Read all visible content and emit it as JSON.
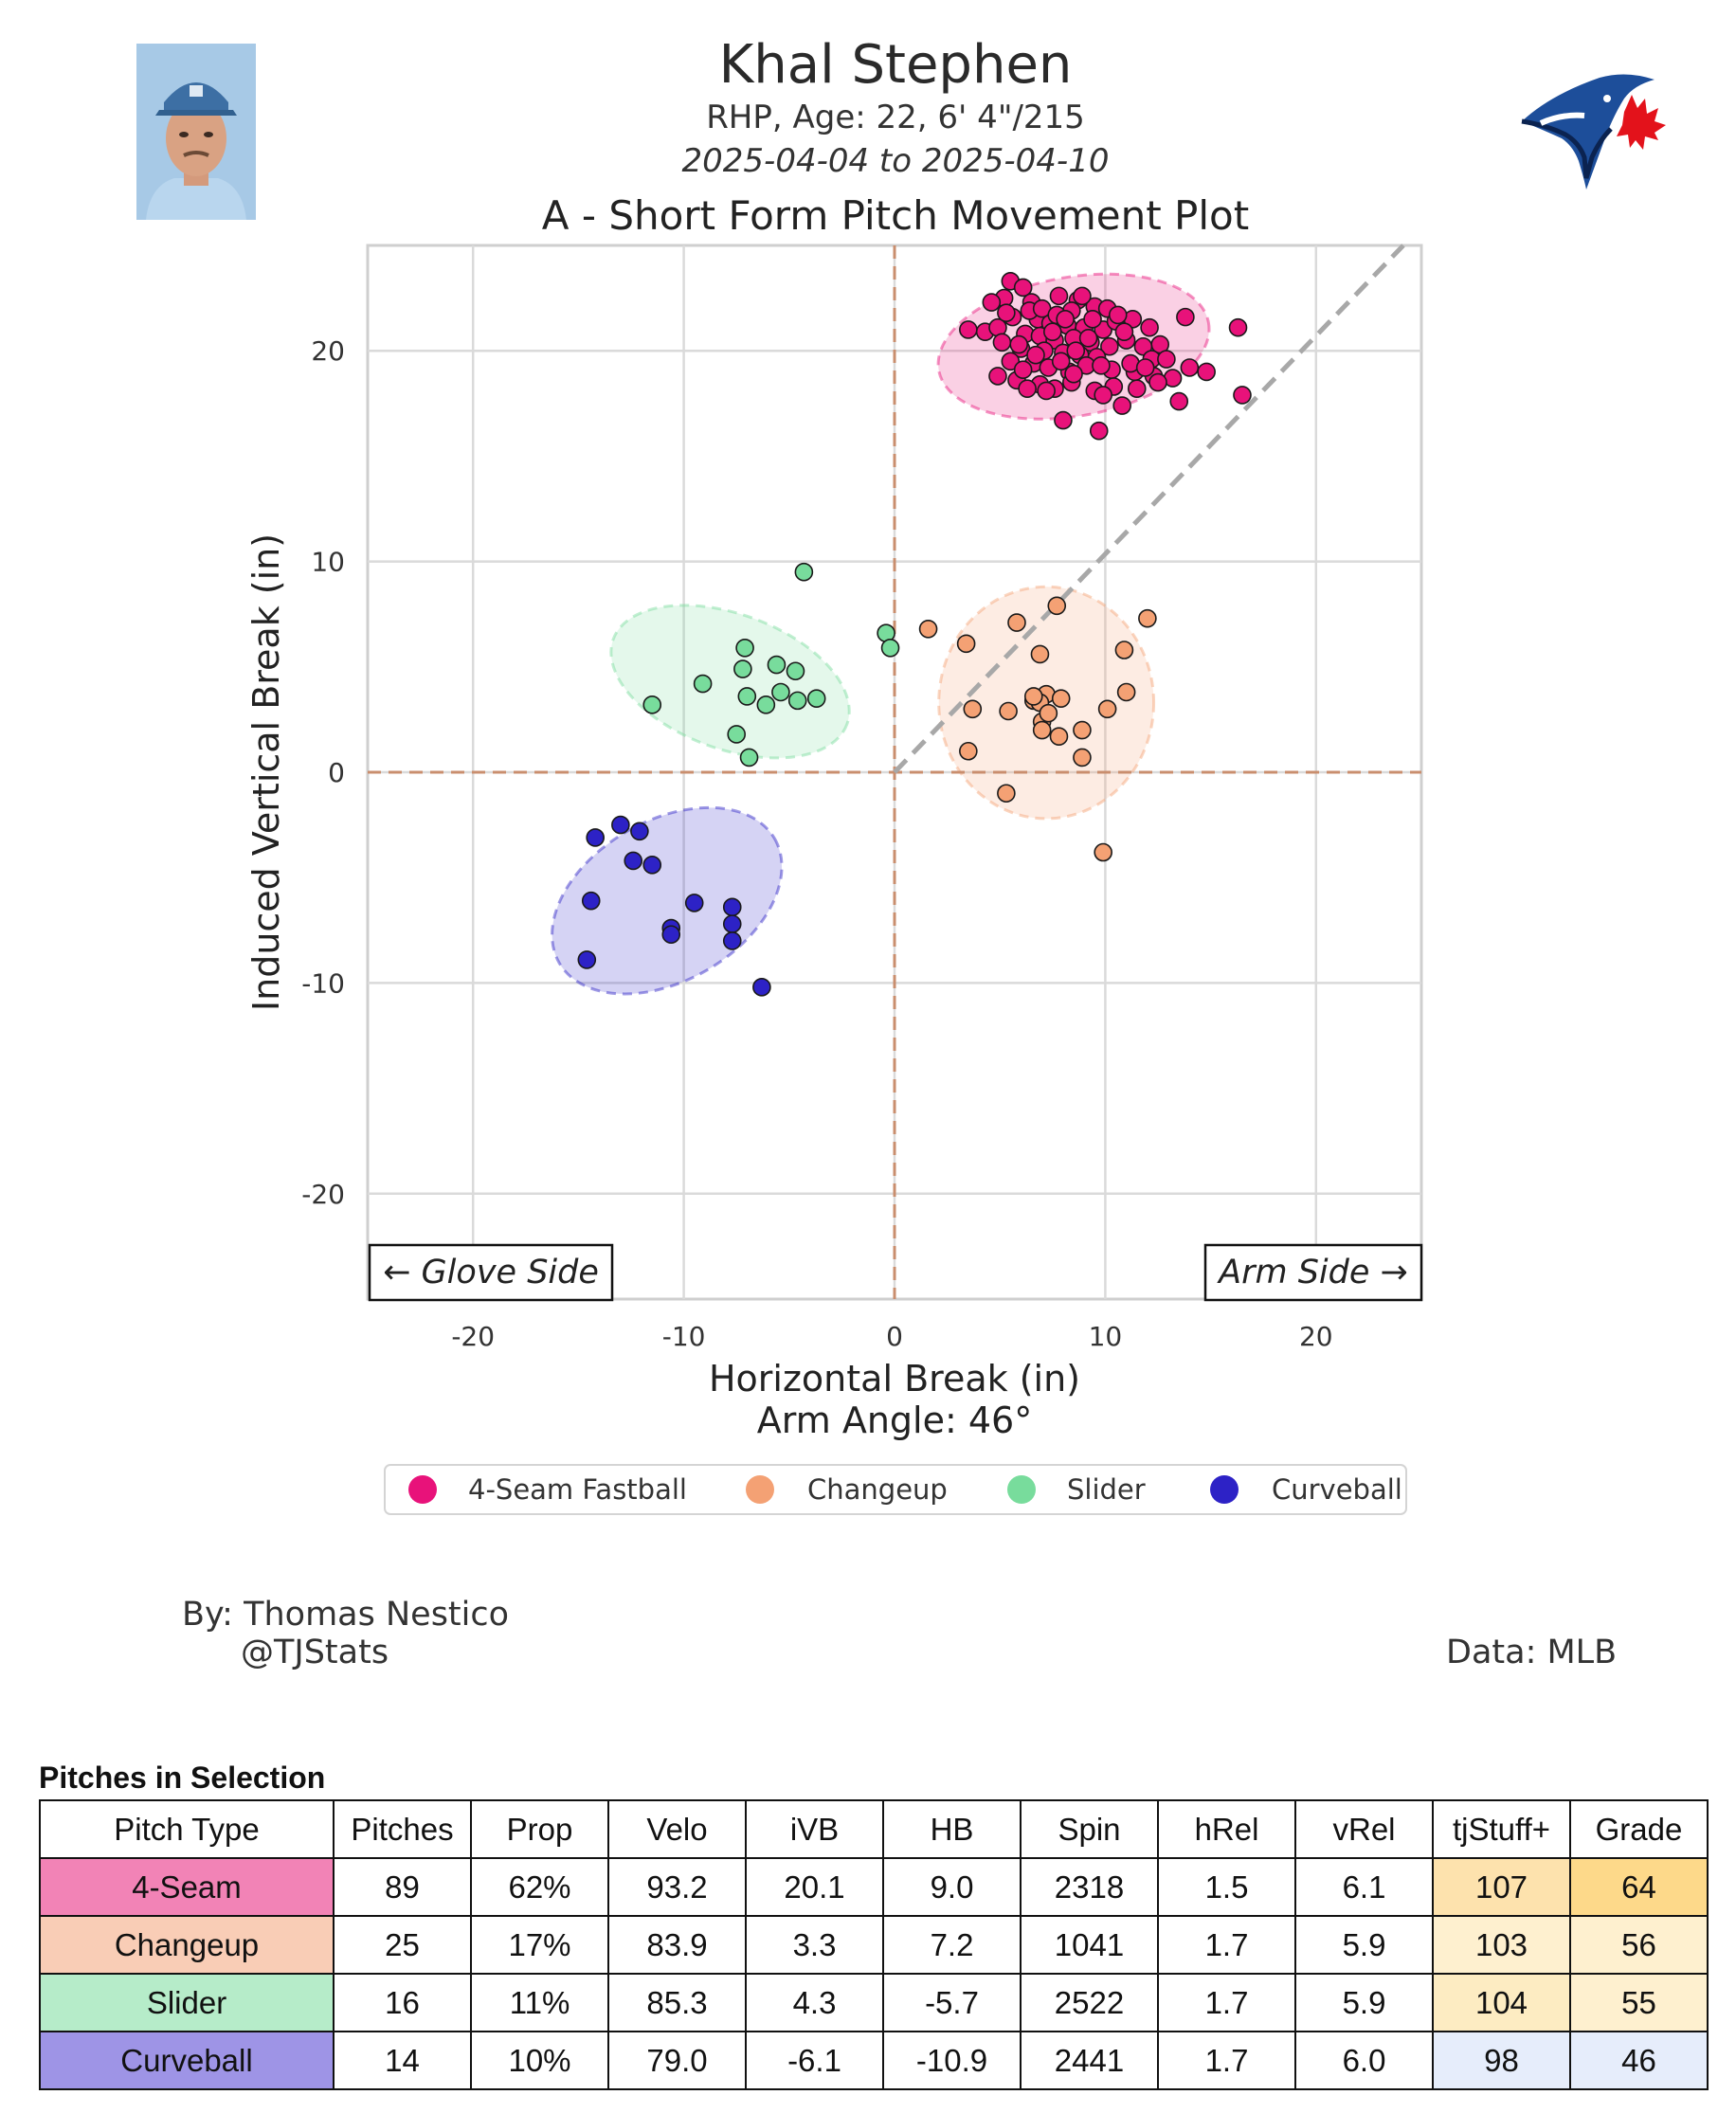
{
  "header": {
    "player_name": "Khal Stephen",
    "bio": "RHP, Age: 22, 6' 4\"/215",
    "date_range": "2025-04-04 to 2025-04-10",
    "plot_title": "A - Short Form Pitch Movement Plot",
    "headshot_icon": "player-headshot",
    "team_logo_icon": "blue-jays-logo"
  },
  "chart_data": {
    "type": "scatter",
    "xlabel": "Horizontal Break (in)",
    "ylabel": "Induced Vertical Break (in)",
    "subtitle": "Arm Angle: 46°",
    "xlim": [
      -25,
      25
    ],
    "ylim": [
      -25,
      25
    ],
    "xticks": [
      -20,
      -10,
      0,
      10,
      20
    ],
    "yticks": [
      -20,
      -10,
      0,
      10,
      20
    ],
    "grid": true,
    "reference_lines": {
      "zero_x": true,
      "zero_y": true,
      "arm_angle_deg": 46
    },
    "side_labels": {
      "left": "← Glove Side",
      "right": "Arm Side →"
    },
    "legend_position": "bottom-center",
    "series": [
      {
        "name": "4-Seam Fastball",
        "color": "#e8127a",
        "ellipse": {
          "cx": 8.5,
          "cy": 20.2,
          "rx": 6.5,
          "ry": 3.3,
          "angle_deg": -10
        },
        "points": [
          [
            5.5,
            23.3
          ],
          [
            6.1,
            23.0
          ],
          [
            5.2,
            22.5
          ],
          [
            6.5,
            22.3
          ],
          [
            7.8,
            22.6
          ],
          [
            8.7,
            22.4
          ],
          [
            9.5,
            22.1
          ],
          [
            10.1,
            22.0
          ],
          [
            8.4,
            21.9
          ],
          [
            5.6,
            21.6
          ],
          [
            6.8,
            21.5
          ],
          [
            7.4,
            21.3
          ],
          [
            8.2,
            21.2
          ],
          [
            9.0,
            21.1
          ],
          [
            9.9,
            21.0
          ],
          [
            10.5,
            21.4
          ],
          [
            11.3,
            21.5
          ],
          [
            12.1,
            21.1
          ],
          [
            13.8,
            21.6
          ],
          [
            16.3,
            21.1
          ],
          [
            4.3,
            20.9
          ],
          [
            4.9,
            21.1
          ],
          [
            3.5,
            21.0
          ],
          [
            6.2,
            20.8
          ],
          [
            6.9,
            20.7
          ],
          [
            7.6,
            20.5
          ],
          [
            8.5,
            20.6
          ],
          [
            9.3,
            20.4
          ],
          [
            10.2,
            20.2
          ],
          [
            11.0,
            20.5
          ],
          [
            12.6,
            20.3
          ],
          [
            6.0,
            20.1
          ],
          [
            7.1,
            20.0
          ],
          [
            8.0,
            19.9
          ],
          [
            8.8,
            19.8
          ],
          [
            9.6,
            19.7
          ],
          [
            5.5,
            19.5
          ],
          [
            6.6,
            19.4
          ],
          [
            7.3,
            19.2
          ],
          [
            8.3,
            19.0
          ],
          [
            9.1,
            19.3
          ],
          [
            10.3,
            19.1
          ],
          [
            11.4,
            19.0
          ],
          [
            12.3,
            18.8
          ],
          [
            13.2,
            18.7
          ],
          [
            14.0,
            19.2
          ],
          [
            14.8,
            19.0
          ],
          [
            5.8,
            18.6
          ],
          [
            6.9,
            18.4
          ],
          [
            7.6,
            18.2
          ],
          [
            8.4,
            18.5
          ],
          [
            9.5,
            18.1
          ],
          [
            10.4,
            18.3
          ],
          [
            11.5,
            18.2
          ],
          [
            12.5,
            18.5
          ],
          [
            4.9,
            18.8
          ],
          [
            6.3,
            18.2
          ],
          [
            7.2,
            18.1
          ],
          [
            13.5,
            17.6
          ],
          [
            16.5,
            17.9
          ],
          [
            9.9,
            17.9
          ],
          [
            10.8,
            17.4
          ],
          [
            8.0,
            16.7
          ],
          [
            9.7,
            16.2
          ],
          [
            5.1,
            20.4
          ],
          [
            6.4,
            21.9
          ],
          [
            7.0,
            22.0
          ],
          [
            7.7,
            21.7
          ],
          [
            8.9,
            22.6
          ],
          [
            9.4,
            21.5
          ],
          [
            10.9,
            20.9
          ],
          [
            11.8,
            20.2
          ],
          [
            12.2,
            19.6
          ],
          [
            8.6,
            20.0
          ],
          [
            7.9,
            19.5
          ],
          [
            6.7,
            19.8
          ],
          [
            5.9,
            20.3
          ],
          [
            9.8,
            19.3
          ],
          [
            11.2,
            19.4
          ],
          [
            8.1,
            21.5
          ],
          [
            7.5,
            20.9
          ],
          [
            6.1,
            19.1
          ],
          [
            9.2,
            20.6
          ],
          [
            10.6,
            21.7
          ],
          [
            5.3,
            21.8
          ],
          [
            4.6,
            22.3
          ],
          [
            12.9,
            19.6
          ],
          [
            11.9,
            19.2
          ],
          [
            8.5,
            18.9
          ]
        ]
      },
      {
        "name": "Changeup",
        "color": "#f4a174",
        "ellipse": {
          "cx": 7.2,
          "cy": 3.3,
          "rx": 5.1,
          "ry": 5.5,
          "angle_deg": 0
        },
        "points": [
          [
            1.6,
            6.8
          ],
          [
            3.4,
            6.1
          ],
          [
            5.8,
            7.1
          ],
          [
            7.7,
            7.9
          ],
          [
            12.0,
            7.3
          ],
          [
            6.9,
            5.6
          ],
          [
            10.9,
            5.8
          ],
          [
            3.7,
            3.0
          ],
          [
            5.4,
            2.9
          ],
          [
            6.6,
            3.4
          ],
          [
            7.2,
            3.7
          ],
          [
            6.9,
            3.3
          ],
          [
            7.9,
            3.5
          ],
          [
            10.1,
            3.0
          ],
          [
            11.0,
            3.8
          ],
          [
            7.0,
            2.4
          ],
          [
            7.0,
            2.0
          ],
          [
            7.8,
            1.7
          ],
          [
            8.9,
            2.0
          ],
          [
            3.5,
            1.0
          ],
          [
            8.9,
            0.7
          ],
          [
            5.3,
            -1.0
          ],
          [
            9.9,
            -3.8
          ],
          [
            6.6,
            3.6
          ],
          [
            7.3,
            2.8
          ]
        ]
      },
      {
        "name": "Slider",
        "color": "#78dc9c",
        "ellipse": {
          "cx": -7.8,
          "cy": 4.3,
          "rx": 5.9,
          "ry": 3.2,
          "angle_deg": 20
        },
        "points": [
          [
            -4.3,
            9.5
          ],
          [
            -0.4,
            6.6
          ],
          [
            -0.2,
            5.9
          ],
          [
            -7.1,
            5.9
          ],
          [
            -7.2,
            4.9
          ],
          [
            -5.6,
            5.1
          ],
          [
            -4.7,
            4.8
          ],
          [
            -9.1,
            4.2
          ],
          [
            -11.5,
            3.2
          ],
          [
            -7.0,
            3.6
          ],
          [
            -5.4,
            3.8
          ],
          [
            -4.6,
            3.4
          ],
          [
            -3.7,
            3.5
          ],
          [
            -6.1,
            3.2
          ],
          [
            -7.5,
            1.8
          ],
          [
            -6.9,
            0.7
          ]
        ]
      },
      {
        "name": "Curveball",
        "color": "#2d22c6",
        "ellipse": {
          "cx": -10.8,
          "cy": -6.1,
          "rx": 5.9,
          "ry": 3.8,
          "angle_deg": -30
        },
        "points": [
          [
            -13.0,
            -2.5
          ],
          [
            -12.1,
            -2.8
          ],
          [
            -14.2,
            -3.1
          ],
          [
            -12.4,
            -4.2
          ],
          [
            -11.5,
            -4.4
          ],
          [
            -14.4,
            -6.1
          ],
          [
            -9.5,
            -6.2
          ],
          [
            -7.7,
            -6.4
          ],
          [
            -10.6,
            -7.4
          ],
          [
            -10.6,
            -7.7
          ],
          [
            -7.7,
            -7.2
          ],
          [
            -7.7,
            -8.0
          ],
          [
            -14.6,
            -8.9
          ],
          [
            -6.3,
            -10.2
          ]
        ]
      }
    ]
  },
  "credits": {
    "author": "By: Thomas Nestico",
    "handle": "@TJStats",
    "source": "Data: MLB"
  },
  "table": {
    "title": "Pitches in Selection",
    "headers": [
      "Pitch Type",
      "Pitches",
      "Prop",
      "Velo",
      "iVB",
      "HB",
      "Spin",
      "hRel",
      "vRel",
      "tjStuff+",
      "Grade"
    ],
    "rows": [
      {
        "cells": [
          "4-Seam",
          "89",
          "62%",
          "93.2",
          "20.1",
          "9.0",
          "2318",
          "1.5",
          "6.1",
          "107",
          "64"
        ],
        "type_color": "#f283b6",
        "stuff_color": "#fde2ad",
        "grade_color": "#fdd98a"
      },
      {
        "cells": [
          "Changeup",
          "25",
          "17%",
          "83.9",
          "3.3",
          "7.2",
          "1041",
          "1.7",
          "5.9",
          "103",
          "56"
        ],
        "type_color": "#f9cdb6",
        "stuff_color": "#fef0cf",
        "grade_color": "#fef0cf"
      },
      {
        "cells": [
          "Slider",
          "16",
          "11%",
          "85.3",
          "4.3",
          "-5.7",
          "2522",
          "1.7",
          "5.9",
          "104",
          "55"
        ],
        "type_color": "#b6ecc9",
        "stuff_color": "#fdecc2",
        "grade_color": "#fef0cf"
      },
      {
        "cells": [
          "Curveball",
          "14",
          "10%",
          "79.0",
          "-6.1",
          "-10.9",
          "2441",
          "1.7",
          "6.0",
          "98",
          "46"
        ],
        "type_color": "#9e94e6",
        "stuff_color": "#e6edfb",
        "grade_color": "#e6edfb"
      }
    ]
  }
}
